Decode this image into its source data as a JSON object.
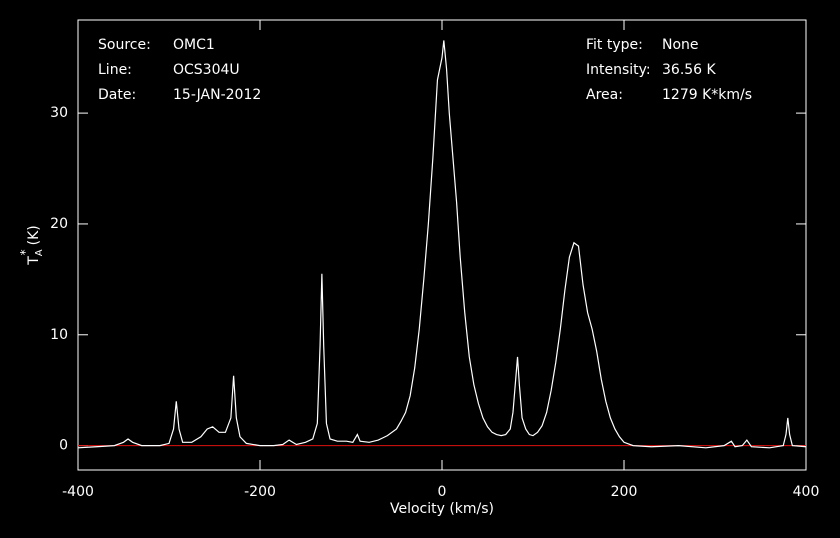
{
  "chart_data": {
    "type": "line",
    "x_label": "Velocity (km/s)",
    "y_label": {
      "base": "T",
      "sub": "A",
      "sup": "*",
      "unit": "(K)"
    },
    "annotations_left": [
      {
        "label": "Source:",
        "value": "OMC1"
      },
      {
        "label": "Line:",
        "value": "OCS304U"
      },
      {
        "label": "Date:",
        "value": "15-JAN-2012"
      }
    ],
    "annotations_right": [
      {
        "label": "Fit type:",
        "value": "None"
      },
      {
        "label": "Intensity:",
        "value": "36.56 K"
      },
      {
        "label": "Area:",
        "value": "1279 K*km/s"
      }
    ],
    "xlim": [
      -400,
      400
    ],
    "ylim": [
      -2.2,
      38.4
    ],
    "xticks": [
      -400,
      -200,
      0,
      200,
      400
    ],
    "yticks": [
      0,
      10,
      20,
      30
    ],
    "baseline": 0,
    "baseline_color": "#e01010",
    "series": [
      {
        "color": "#ffffff",
        "x": [
          -400,
          -380,
          -360,
          -350,
          -345,
          -340,
          -330,
          -310,
          -300,
          -295,
          -292,
          -289,
          -285,
          -275,
          -265,
          -258,
          -252,
          -245,
          -238,
          -232,
          -229,
          -226,
          -222,
          -215,
          -200,
          -185,
          -175,
          -168,
          -160,
          -150,
          -142,
          -137,
          -134,
          -132,
          -130,
          -127,
          -123,
          -115,
          -105,
          -98,
          -93,
          -90,
          -80,
          -70,
          -60,
          -50,
          -45,
          -40,
          -35,
          -30,
          -25,
          -20,
          -15,
          -10,
          -5,
          0,
          2,
          5,
          8,
          12,
          16,
          20,
          25,
          30,
          35,
          40,
          45,
          50,
          55,
          60,
          65,
          70,
          75,
          78,
          81,
          83,
          85,
          88,
          92,
          96,
          100,
          105,
          110,
          115,
          120,
          125,
          130,
          135,
          140,
          145,
          150,
          155,
          160,
          165,
          170,
          175,
          180,
          185,
          190,
          195,
          200,
          210,
          230,
          260,
          290,
          310,
          318,
          322,
          330,
          335,
          340,
          360,
          375,
          378,
          380,
          382,
          385,
          400
        ],
        "values": [
          -0.2,
          -0.1,
          0.0,
          0.3,
          0.6,
          0.3,
          0.0,
          0.0,
          0.2,
          1.5,
          4.0,
          1.5,
          0.3,
          0.3,
          0.8,
          1.5,
          1.7,
          1.2,
          1.2,
          2.5,
          6.3,
          2.5,
          0.8,
          0.2,
          0.0,
          0.0,
          0.1,
          0.5,
          0.1,
          0.3,
          0.6,
          2.0,
          9.0,
          15.5,
          9.0,
          2.0,
          0.6,
          0.4,
          0.4,
          0.3,
          1.0,
          0.4,
          0.3,
          0.5,
          0.9,
          1.5,
          2.2,
          3.0,
          4.5,
          7.0,
          10.5,
          15.0,
          20.0,
          26.0,
          33.0,
          35.0,
          36.56,
          34.0,
          30.0,
          26.0,
          22.0,
          17.0,
          12.0,
          8.0,
          5.5,
          3.8,
          2.5,
          1.7,
          1.2,
          1.0,
          0.9,
          1.0,
          1.5,
          3.0,
          6.0,
          8.0,
          5.5,
          2.5,
          1.5,
          1.0,
          0.9,
          1.2,
          1.8,
          3.0,
          5.0,
          7.5,
          10.5,
          14.0,
          17.0,
          18.3,
          18.0,
          14.5,
          12.0,
          10.5,
          8.5,
          6.0,
          4.0,
          2.5,
          1.5,
          0.8,
          0.3,
          0.0,
          -0.1,
          0.0,
          -0.2,
          0.0,
          0.4,
          -0.1,
          0.0,
          0.5,
          -0.1,
          -0.2,
          0.0,
          1.0,
          2.5,
          1.0,
          0.0,
          -0.1
        ]
      }
    ]
  }
}
